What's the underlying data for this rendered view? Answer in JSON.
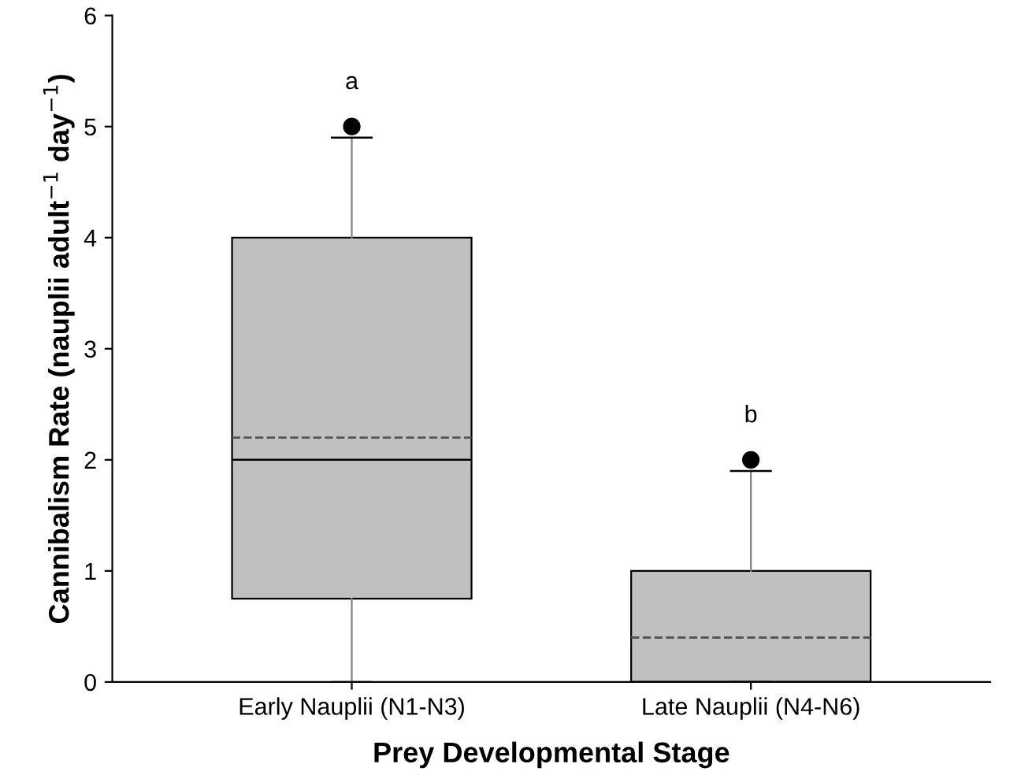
{
  "chart_data": {
    "type": "box",
    "xlabel": "Prey Developmental Stage",
    "ylabel": "Cannibalism Rate (nauplii adult$^{−1}$ day$^{−1}$)",
    "categories": [
      "Early Nauplii (N1-N3)",
      "Late Nauplii (N4-N6)"
    ],
    "boxes": [
      {
        "low": 0,
        "q1": 0.75,
        "median": 2,
        "q3": 4,
        "high": 4.9,
        "mean": 2.2,
        "outliers": [
          5
        ]
      },
      {
        "low": 0,
        "q1": 0,
        "median": 0,
        "q3": 1,
        "high": 1.9,
        "mean": 0.4,
        "outliers": [
          2
        ]
      }
    ],
    "color": "#c0c0c0",
    "ylim": [
      0,
      6
    ],
    "yticks": [
      0,
      1,
      2,
      3,
      4,
      5,
      6
    ],
    "annotations": [
      "a",
      "b"
    ],
    "grid": false
  }
}
